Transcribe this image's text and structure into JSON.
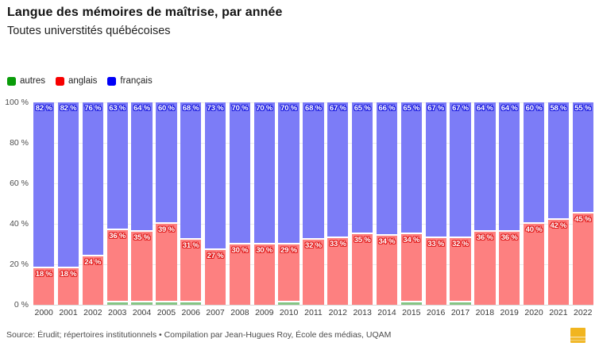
{
  "header": {
    "title": "Langue des mémoires de maîtrise, par année",
    "subtitle": "Toutes universtités québécoises"
  },
  "chart_data": {
    "type": "bar",
    "stacked": true,
    "normalized_to_100": true,
    "title": "Langue des mémoires de maîtrise, par année",
    "subtitle": "Toutes universtités québécoises",
    "xlabel": "",
    "ylabel": "",
    "ylim": [
      0,
      100
    ],
    "grid": "horizontal",
    "legend_position": "top-left",
    "label_suffix": " %",
    "yticks": [
      "0 %",
      "20 %",
      "40 %",
      "60 %",
      "80 %",
      "100 %"
    ],
    "categories": [
      "2000",
      "2001",
      "2002",
      "2003",
      "2004",
      "2005",
      "2006",
      "2007",
      "2008",
      "2009",
      "2010",
      "2011",
      "2012",
      "2013",
      "2014",
      "2015",
      "2016",
      "2017",
      "2018",
      "2019",
      "2020",
      "2021",
      "2022"
    ],
    "series": [
      {
        "name": "autres",
        "legend_color": "#0a9c0a",
        "bar_color": "#85c585",
        "show_labels": false,
        "values": [
          0,
          0,
          0,
          1,
          1,
          1,
          1,
          0,
          0,
          0,
          1,
          0,
          0,
          0,
          0,
          1,
          0,
          1,
          0,
          0,
          0,
          0,
          0
        ]
      },
      {
        "name": "anglais",
        "legend_color": "#f70000",
        "bar_color": "#fd8080",
        "halo_color": "#e01a1a",
        "show_labels": true,
        "values": [
          18,
          18,
          24,
          36,
          35,
          39,
          31,
          27,
          30,
          30,
          29,
          32,
          33,
          35,
          34,
          34,
          33,
          32,
          36,
          36,
          40,
          42,
          45
        ]
      },
      {
        "name": "français",
        "legend_color": "#0000f7",
        "bar_color": "#7c7cf7",
        "halo_color": "#1a1ae0",
        "show_labels": true,
        "values": [
          82,
          82,
          76,
          63,
          64,
          60,
          68,
          73,
          70,
          70,
          70,
          68,
          67,
          65,
          66,
          65,
          67,
          67,
          64,
          64,
          60,
          58,
          55
        ]
      }
    ]
  },
  "footer": {
    "source": "Source: Érudit; répertoires institutionnels • Compilation par Jean-Hugues Roy, École des médias, UQAM",
    "logo": "datawrapper-badge"
  }
}
